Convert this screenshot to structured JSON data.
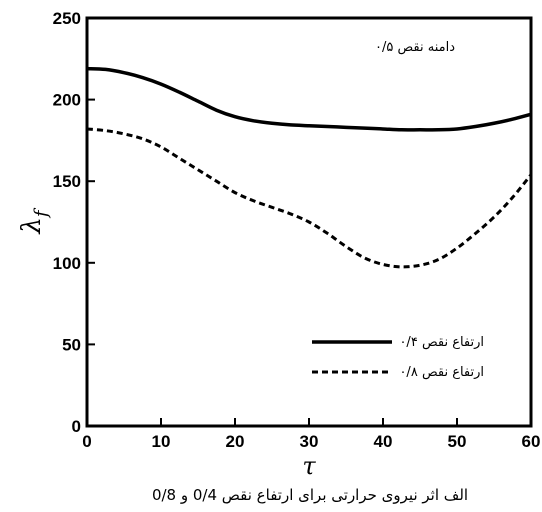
{
  "chart_data": {
    "type": "line",
    "title": "",
    "caption": "الف اثر نیروی حرارتی برای ارتفاع نقص 0/4 و 0/8",
    "annotation": "دامنه نقص ۰/۵",
    "xlabel": "τ",
    "ylabel": "λf",
    "ylabel_base": "λ",
    "ylabel_sub": "f",
    "xlim": [
      0,
      60
    ],
    "ylim": [
      0,
      250
    ],
    "xticks": [
      0,
      10,
      20,
      30,
      40,
      50,
      60
    ],
    "yticks": [
      0,
      50,
      100,
      150,
      200,
      250
    ],
    "grid": false,
    "legend_position": "bottom-right",
    "series": [
      {
        "name": "ارتفاع نقص ۰/۴",
        "style": "solid",
        "color": "#000000",
        "x": [
          0,
          2.5,
          5,
          7.5,
          10,
          12.5,
          15,
          17.5,
          20,
          22.5,
          25,
          27.5,
          30,
          32.5,
          35,
          37.5,
          40,
          42.5,
          45,
          47.5,
          50,
          52.5,
          55,
          57.5,
          60
        ],
        "y": [
          219,
          218.5,
          216.5,
          213.5,
          209.5,
          204.5,
          199,
          193.5,
          189.5,
          187,
          185.5,
          184.5,
          184,
          183.5,
          183,
          182.5,
          182,
          181.5,
          181.5,
          181.5,
          182,
          183.5,
          185.5,
          188,
          191
        ]
      },
      {
        "name": "ارتفاع نقص ۰/۸",
        "style": "dashed",
        "color": "#000000",
        "x": [
          0,
          2.5,
          5,
          7.5,
          10,
          12.5,
          15,
          17.5,
          20,
          22.5,
          25,
          27.5,
          30,
          32.5,
          35,
          37.5,
          40,
          42.5,
          45,
          47.5,
          50,
          52.5,
          55,
          57.5,
          60
        ],
        "y": [
          182,
          181,
          179,
          176,
          171,
          164,
          157,
          150,
          143,
          138,
          134,
          130,
          125,
          118,
          110,
          103,
          99,
          97.5,
          98.5,
          102,
          109,
          118,
          128,
          140,
          154
        ]
      }
    ]
  }
}
